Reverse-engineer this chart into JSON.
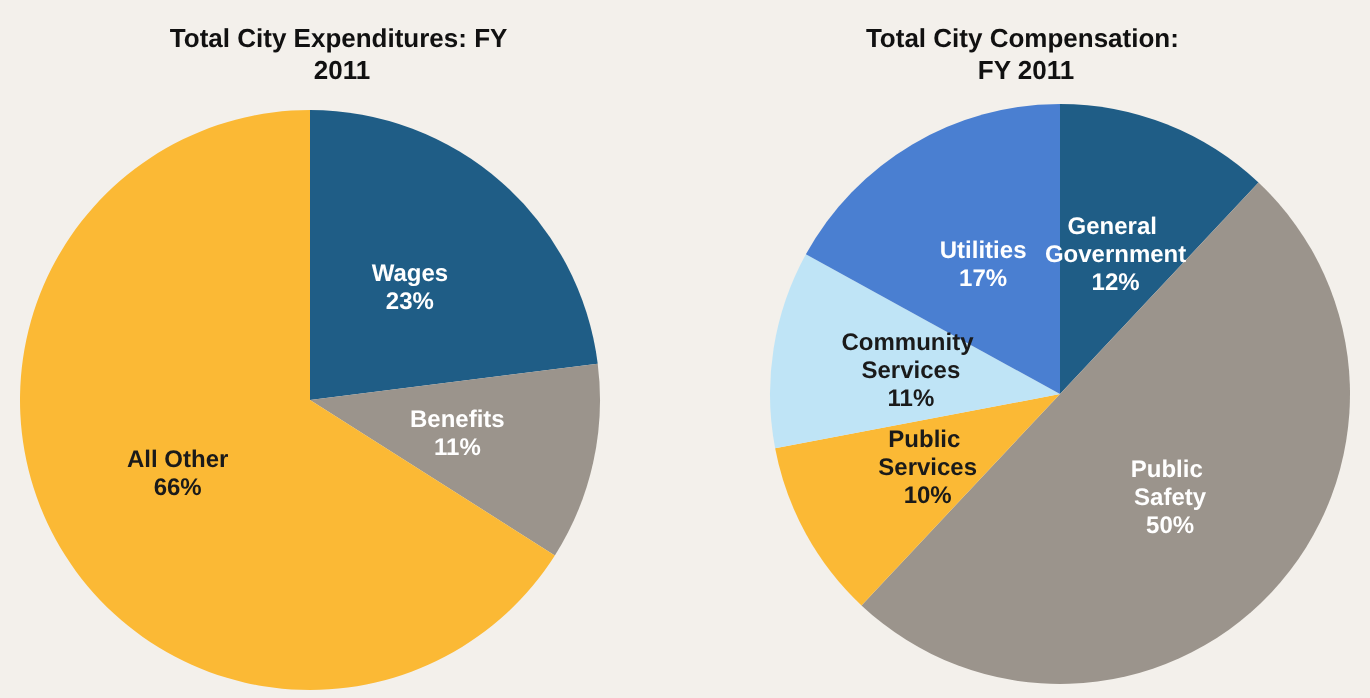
{
  "chart_data": [
    {
      "type": "pie",
      "title": "Total City Expenditures: FY 2011",
      "categories": [
        "Wages",
        "Benefits",
        "All Other"
      ],
      "values": [
        23,
        11,
        66
      ],
      "value_labels": [
        "23%",
        "11%",
        "66%"
      ],
      "colors": [
        "#1f5d86",
        "#9b948c",
        "#fbb935"
      ]
    },
    {
      "type": "pie",
      "title": "Total City Compensation: FY 2011",
      "categories": [
        "General Government",
        "Public Safety",
        "Public Services",
        "Community Services",
        "Utilities"
      ],
      "values": [
        12,
        50,
        10,
        11,
        17
      ],
      "value_labels": [
        "12%",
        "50%",
        "10%",
        "11%",
        "17%"
      ],
      "colors": [
        "#1f5d86",
        "#9b948c",
        "#fbb935",
        "#bfe4f6",
        "#4a7fd1"
      ]
    }
  ]
}
